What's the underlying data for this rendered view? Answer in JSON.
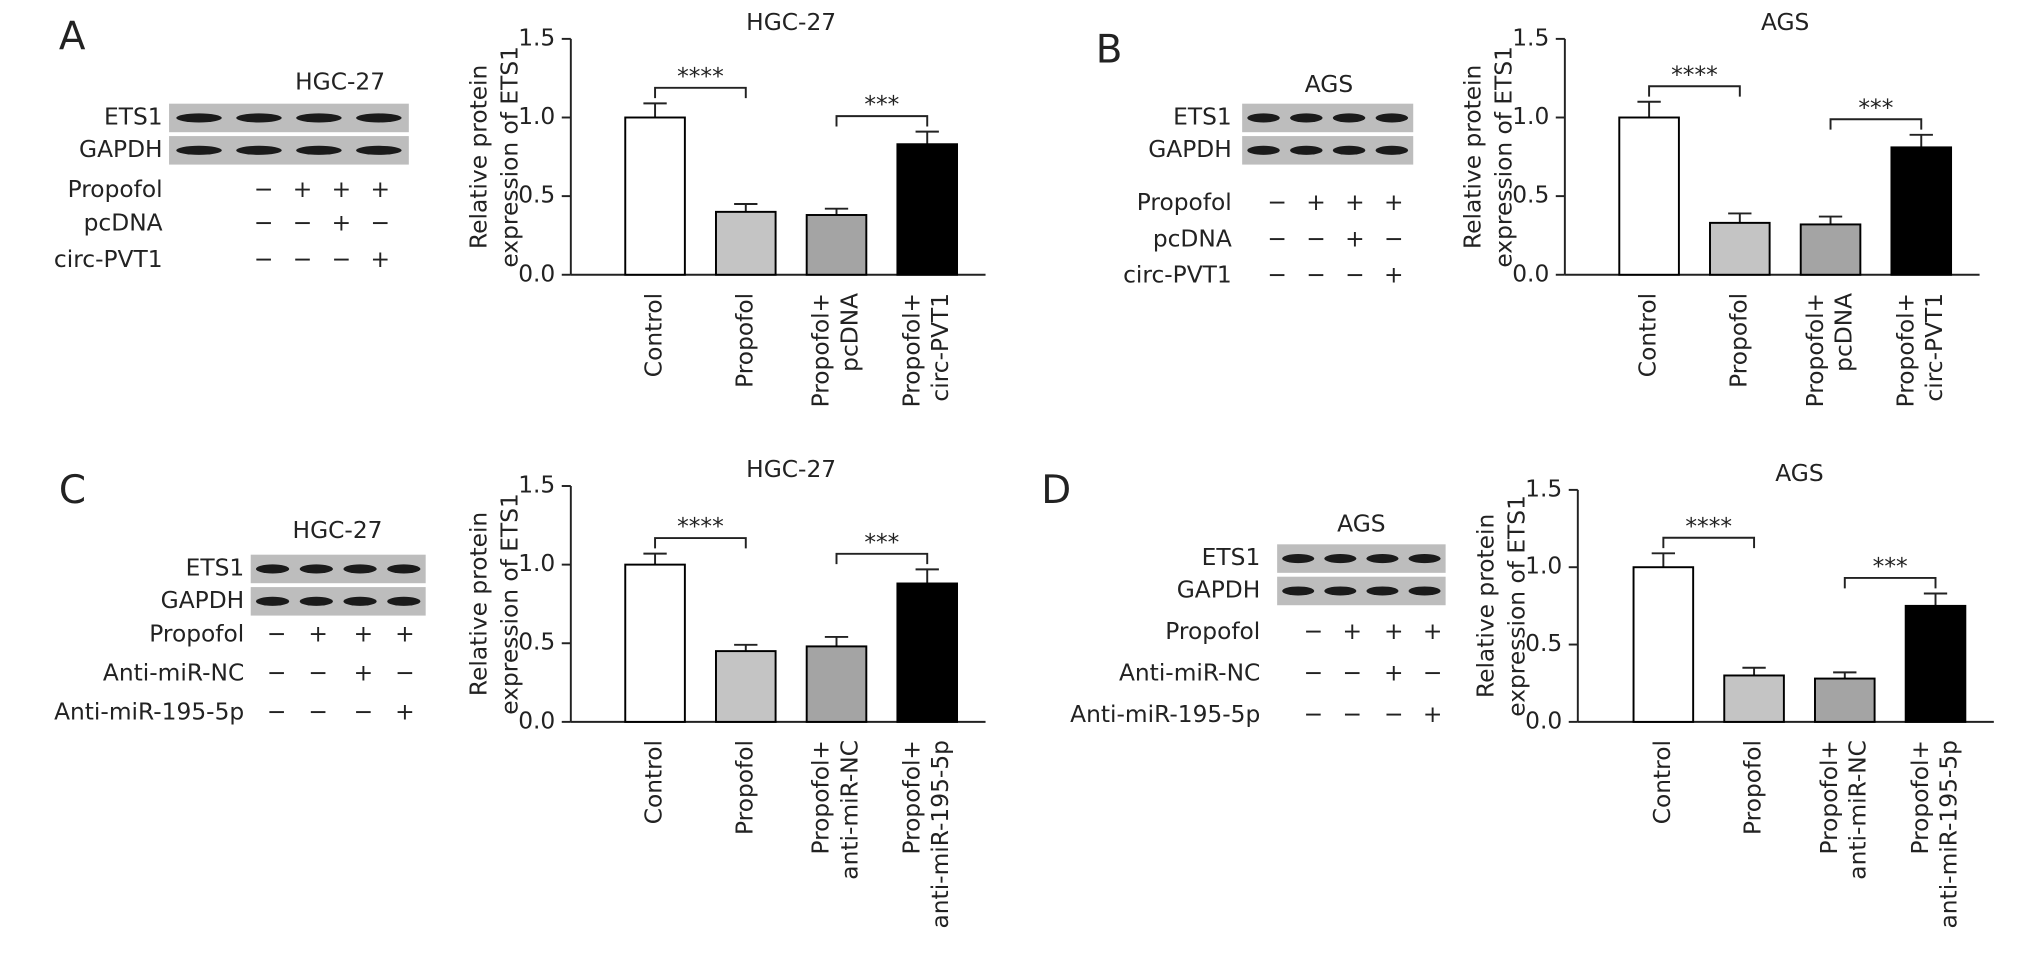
{
  "figure": {
    "panels": [
      {
        "letter": "A",
        "blot": {
          "cell_line": "HGC-27",
          "bands": [
            "ETS1",
            "GAPDH"
          ],
          "conditions": [
            {
              "label": "Propofol",
              "signs": [
                "−",
                "+",
                "+",
                "+"
              ]
            },
            {
              "label": "pcDNA",
              "signs": [
                "−",
                "−",
                "+",
                "−"
              ]
            },
            {
              "label": "circ-PVT1",
              "signs": [
                "−",
                "−",
                "−",
                "+"
              ]
            }
          ]
        }
      },
      {
        "letter": "B",
        "blot": {
          "cell_line": "AGS",
          "bands": [
            "ETS1",
            "GAPDH"
          ],
          "conditions": [
            {
              "label": "Propofol",
              "signs": [
                "−",
                "+",
                "+",
                "+"
              ]
            },
            {
              "label": "pcDNA",
              "signs": [
                "−",
                "−",
                "+",
                "−"
              ]
            },
            {
              "label": "circ-PVT1",
              "signs": [
                "−",
                "−",
                "−",
                "+"
              ]
            }
          ]
        }
      },
      {
        "letter": "C",
        "blot": {
          "cell_line": "HGC-27",
          "bands": [
            "ETS1",
            "GAPDH"
          ],
          "conditions": [
            {
              "label": "Propofol",
              "signs": [
                "−",
                "+",
                "+",
                "+"
              ]
            },
            {
              "label": "Anti-miR-NC",
              "signs": [
                "−",
                "−",
                "+",
                "−"
              ]
            },
            {
              "label": "Anti-miR-195-5p",
              "signs": [
                "−",
                "−",
                "−",
                "+"
              ]
            }
          ]
        }
      },
      {
        "letter": "D",
        "blot": {
          "cell_line": "AGS",
          "bands": [
            "ETS1",
            "GAPDH"
          ],
          "conditions": [
            {
              "label": "Propofol",
              "signs": [
                "−",
                "+",
                "+",
                "+"
              ]
            },
            {
              "label": "Anti-miR-NC",
              "signs": [
                "−",
                "−",
                "+",
                "−"
              ]
            },
            {
              "label": "Anti-miR-195-5p",
              "signs": [
                "−",
                "−",
                "−",
                "+"
              ]
            }
          ]
        }
      }
    ]
  },
  "chart_data": [
    {
      "type": "bar",
      "title": "HGC-27",
      "y_label": [
        "Relative protein",
        "expression of ETS1"
      ],
      "categories": [
        [
          "Control"
        ],
        [
          "Propofol"
        ],
        [
          "Propofol+",
          "pcDNA"
        ],
        [
          "Propofol+",
          "circ-PVT1"
        ]
      ],
      "values": [
        1.0,
        0.4,
        0.38,
        0.83
      ],
      "errors": [
        0.09,
        0.05,
        0.04,
        0.08
      ],
      "colors": [
        "#ffffff",
        "#c4c4c4",
        "#a4a4a4",
        "#000000"
      ],
      "ylim": [
        0,
        1.5
      ],
      "yticks": [
        {
          "value": 0,
          "label": "0.0"
        },
        0.5,
        {
          "value": 1,
          "label": "1.0"
        },
        1.5
      ],
      "significance": [
        "****",
        "***"
      ]
    },
    {
      "type": "bar",
      "title": "AGS",
      "y_label": [
        "Relative protein",
        "expression of ETS1"
      ],
      "categories": [
        [
          "Control"
        ],
        [
          "Propofol"
        ],
        [
          "Propofol+",
          "pcDNA"
        ],
        [
          "Propofol+",
          "circ-PVT1"
        ]
      ],
      "values": [
        1.0,
        0.33,
        0.32,
        0.81
      ],
      "errors": [
        0.1,
        0.06,
        0.05,
        0.08
      ],
      "colors": [
        "#ffffff",
        "#c4c4c4",
        "#a4a4a4",
        "#000000"
      ],
      "ylim": [
        0,
        1.5
      ],
      "yticks": [
        {
          "value": 0,
          "label": "0.0"
        },
        0.5,
        {
          "value": 1,
          "label": "1.0"
        },
        1.5
      ],
      "significance": [
        "****",
        "***"
      ]
    },
    {
      "type": "bar",
      "title": "HGC-27",
      "y_label": [
        "Relative protein",
        "expression of ETS1"
      ],
      "categories": [
        [
          "Control"
        ],
        [
          "Propofol"
        ],
        [
          "Propofol+",
          "anti-miR-NC"
        ],
        [
          "Propofol+",
          "anti-miR-195-5p"
        ]
      ],
      "values": [
        1.0,
        0.45,
        0.48,
        0.88
      ],
      "errors": [
        0.07,
        0.04,
        0.06,
        0.09
      ],
      "colors": [
        "#ffffff",
        "#c4c4c4",
        "#a4a4a4",
        "#000000"
      ],
      "ylim": [
        0,
        1.5
      ],
      "yticks": [
        {
          "value": 0,
          "label": "0.0"
        },
        0.5,
        {
          "value": 1,
          "label": "1.0"
        },
        1.5
      ],
      "significance": [
        "****",
        "***"
      ]
    },
    {
      "type": "bar",
      "title": "AGS",
      "y_label": [
        "Relative protein",
        "expression of ETS1"
      ],
      "categories": [
        [
          "Control"
        ],
        [
          "Propofol"
        ],
        [
          "Propofol+",
          "anti-miR-NC"
        ],
        [
          "Propofol+",
          "anti-miR-195-5p"
        ]
      ],
      "values": [
        1.0,
        0.3,
        0.28,
        0.75
      ],
      "errors": [
        0.09,
        0.05,
        0.04,
        0.08
      ],
      "colors": [
        "#ffffff",
        "#c4c4c4",
        "#a4a4a4",
        "#000000"
      ],
      "ylim": [
        0,
        1.5
      ],
      "yticks": [
        {
          "value": 0,
          "label": "0.0"
        },
        0.5,
        {
          "value": 1,
          "label": "1.0"
        },
        1.5
      ],
      "significance": [
        "****",
        "***"
      ]
    }
  ]
}
